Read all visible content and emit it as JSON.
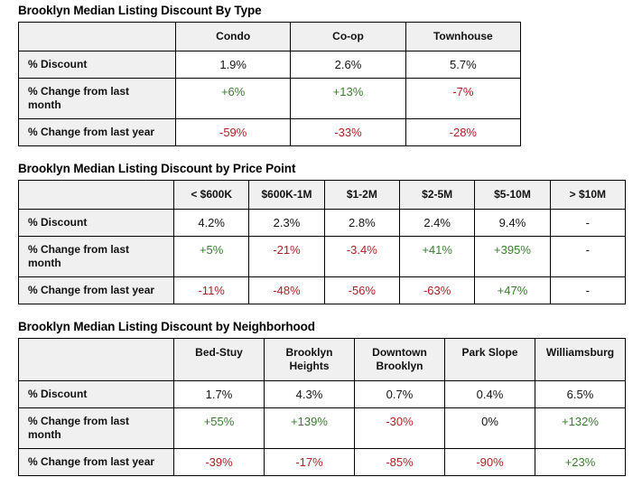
{
  "colors": {
    "positive": "#3a7d2f",
    "negative": "#ae2024",
    "neutral": "#141414",
    "header_bg": "#f0f0f0",
    "border": "#000000",
    "title": "#000000",
    "page_bg": "#ffffff"
  },
  "tables": [
    {
      "title": "Brooklyn Median Listing Discount By Type",
      "columns": [
        "Condo",
        "Co-op",
        "Townhouse"
      ],
      "rows": [
        {
          "label": "% Discount",
          "cells": [
            {
              "text": "1.9%",
              "tone": "neutral"
            },
            {
              "text": "2.6%",
              "tone": "neutral"
            },
            {
              "text": "5.7%",
              "tone": "neutral"
            }
          ]
        },
        {
          "label": "% Change from last\nmonth",
          "cells": [
            {
              "text": "+6%",
              "tone": "positive"
            },
            {
              "text": "+13%",
              "tone": "positive"
            },
            {
              "text": "-7%",
              "tone": "negative"
            }
          ]
        },
        {
          "label": "% Change from last year",
          "cells": [
            {
              "text": "-59%",
              "tone": "negative"
            },
            {
              "text": "-33%",
              "tone": "negative"
            },
            {
              "text": "-28%",
              "tone": "negative"
            }
          ]
        }
      ]
    },
    {
      "title": "Brooklyn Median Listing Discount by Price Point",
      "columns": [
        "< $600K",
        "$600K-1M",
        "$1-2M",
        "$2-5M",
        "$5-10M",
        "> $10M"
      ],
      "rows": [
        {
          "label": "% Discount",
          "cells": [
            {
              "text": "4.2%",
              "tone": "neutral"
            },
            {
              "text": "2.3%",
              "tone": "neutral"
            },
            {
              "text": "2.8%",
              "tone": "neutral"
            },
            {
              "text": "2.4%",
              "tone": "neutral"
            },
            {
              "text": "9.4%",
              "tone": "neutral"
            },
            {
              "text": "-",
              "tone": "neutral"
            }
          ]
        },
        {
          "label": "% Change from last\nmonth",
          "cells": [
            {
              "text": "+5%",
              "tone": "positive"
            },
            {
              "text": "-21%",
              "tone": "negative"
            },
            {
              "text": "-3.4%",
              "tone": "negative"
            },
            {
              "text": "+41%",
              "tone": "positive"
            },
            {
              "text": "+395%",
              "tone": "positive"
            },
            {
              "text": "-",
              "tone": "neutral"
            }
          ]
        },
        {
          "label": "% Change from last year",
          "cells": [
            {
              "text": "-11%",
              "tone": "negative"
            },
            {
              "text": "-48%",
              "tone": "negative"
            },
            {
              "text": "-56%",
              "tone": "negative"
            },
            {
              "text": "-63%",
              "tone": "negative"
            },
            {
              "text": "+47%",
              "tone": "positive"
            },
            {
              "text": "-",
              "tone": "neutral"
            }
          ]
        }
      ]
    },
    {
      "title": "Brooklyn Median Listing Discount by Neighborhood",
      "columns": [
        "Bed-Stuy",
        "Brooklyn Heights",
        "Downtown Brooklyn",
        "Park Slope",
        "Williamsburg"
      ],
      "rows": [
        {
          "label": "% Discount",
          "cells": [
            {
              "text": "1.7%",
              "tone": "neutral"
            },
            {
              "text": "4.3%",
              "tone": "neutral"
            },
            {
              "text": "0.7%",
              "tone": "neutral"
            },
            {
              "text": "0.4%",
              "tone": "neutral"
            },
            {
              "text": "6.5%",
              "tone": "neutral"
            }
          ]
        },
        {
          "label": "% Change from last\nmonth",
          "cells": [
            {
              "text": "+55%",
              "tone": "positive"
            },
            {
              "text": "+139%",
              "tone": "positive"
            },
            {
              "text": "-30%",
              "tone": "negative"
            },
            {
              "text": "0%",
              "tone": "neutral"
            },
            {
              "text": "+132%",
              "tone": "positive"
            }
          ]
        },
        {
          "label": "% Change from last year",
          "cells": [
            {
              "text": "-39%",
              "tone": "negative"
            },
            {
              "text": "-17%",
              "tone": "negative"
            },
            {
              "text": "-85%",
              "tone": "negative"
            },
            {
              "text": "-90%",
              "tone": "negative"
            },
            {
              "text": "+23%",
              "tone": "positive"
            }
          ]
        }
      ]
    }
  ]
}
